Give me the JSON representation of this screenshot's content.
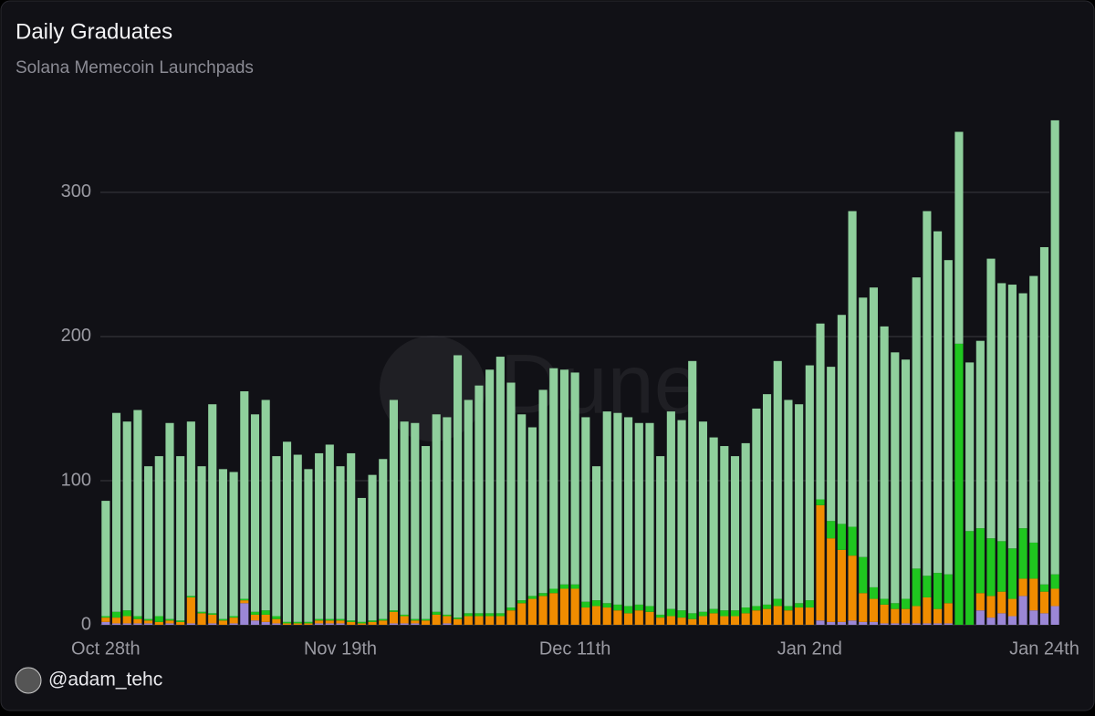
{
  "chart_data": {
    "type": "stacked_bar",
    "title": "Daily Graduates",
    "subtitle": "Solana Memecoin Launchpads",
    "watermark": "Dune",
    "author": "@adam_tehc",
    "categories": [
      "Oct 28th",
      null,
      null,
      null,
      null,
      null,
      null,
      null,
      null,
      null,
      null,
      null,
      null,
      null,
      null,
      null,
      null,
      null,
      null,
      null,
      null,
      null,
      "Nov 19th",
      null,
      null,
      null,
      null,
      null,
      null,
      null,
      null,
      null,
      null,
      null,
      null,
      null,
      null,
      null,
      null,
      null,
      null,
      null,
      null,
      null,
      "Dec 11th",
      null,
      null,
      null,
      null,
      null,
      null,
      null,
      null,
      null,
      null,
      null,
      null,
      null,
      null,
      null,
      null,
      null,
      null,
      null,
      null,
      null,
      "Jan 2nd",
      null,
      null,
      null,
      null,
      null,
      null,
      null,
      null,
      null,
      null,
      null,
      null,
      null,
      null,
      null,
      null,
      null,
      null,
      null,
      null,
      null,
      "Jan 24th",
      null
    ],
    "series": [
      {
        "color": "#9b87d6",
        "values": [
          2,
          1,
          1,
          1,
          1,
          0,
          1,
          0,
          1,
          0,
          1,
          0,
          1,
          15,
          3,
          2,
          1,
          0,
          0,
          0,
          1,
          1,
          1,
          0,
          0,
          0,
          0,
          1,
          1,
          1,
          0,
          0,
          1,
          0,
          0,
          0,
          0,
          0,
          0,
          0,
          0,
          0,
          0,
          0,
          0,
          0,
          0,
          0,
          0,
          0,
          0,
          0,
          0,
          0,
          0,
          0,
          0,
          0,
          0,
          0,
          0,
          0,
          0,
          0,
          0,
          0,
          0,
          3,
          2,
          2,
          3,
          2,
          2,
          1,
          1,
          1,
          1,
          1,
          1,
          1,
          0,
          0,
          10,
          5,
          8,
          6,
          20,
          10,
          8,
          13
        ]
      },
      {
        "color": "#f08c00",
        "values": [
          3,
          4,
          5,
          3,
          2,
          2,
          2,
          2,
          18,
          8,
          6,
          3,
          4,
          2,
          4,
          5,
          3,
          1,
          1,
          1,
          2,
          2,
          2,
          2,
          1,
          2,
          3,
          8,
          5,
          2,
          3,
          7,
          5,
          4,
          6,
          6,
          6,
          6,
          10,
          15,
          18,
          20,
          22,
          25,
          25,
          12,
          13,
          12,
          10,
          8,
          10,
          9,
          5,
          6,
          5,
          4,
          6,
          8,
          6,
          6,
          8,
          10,
          11,
          13,
          10,
          12,
          12,
          80,
          58,
          50,
          45,
          20,
          16,
          13,
          10,
          10,
          12,
          18,
          10,
          14,
          0,
          0,
          12,
          15,
          15,
          12,
          12,
          22,
          15,
          12
        ]
      },
      {
        "color": "#1fc61f",
        "values": [
          1,
          4,
          4,
          2,
          1,
          4,
          1,
          1,
          1,
          1,
          1,
          1,
          1,
          1,
          2,
          3,
          2,
          1,
          1,
          1,
          1,
          1,
          1,
          1,
          1,
          1,
          1,
          1,
          1,
          1,
          1,
          2,
          1,
          1,
          2,
          2,
          2,
          2,
          2,
          2,
          2,
          2,
          3,
          3,
          3,
          4,
          4,
          3,
          4,
          5,
          4,
          4,
          2,
          5,
          5,
          4,
          3,
          3,
          4,
          4,
          4,
          3,
          3,
          5,
          3,
          3,
          5,
          4,
          12,
          18,
          20,
          25,
          8,
          4,
          4,
          7,
          26,
          15,
          25,
          20,
          195,
          65,
          45,
          40,
          35,
          35,
          35,
          25,
          5,
          10
        ]
      },
      {
        "color": "#8fcf9c",
        "values": [
          80,
          138,
          131,
          143,
          106,
          111,
          136,
          114,
          121,
          101,
          145,
          104,
          100,
          144,
          137,
          146,
          111,
          125,
          116,
          106,
          115,
          121,
          106,
          116,
          86,
          101,
          111,
          146,
          134,
          136,
          120,
          137,
          137,
          182,
          148,
          158,
          169,
          178,
          156,
          129,
          117,
          141,
          153,
          149,
          147,
          128,
          93,
          133,
          133,
          131,
          126,
          127,
          110,
          137,
          132,
          175,
          132,
          119,
          114,
          107,
          114,
          137,
          146,
          165,
          143,
          138,
          163,
          122,
          107,
          145,
          219,
          180,
          208,
          189,
          174,
          166,
          202,
          253,
          237,
          218,
          147,
          117,
          130,
          194,
          179,
          183,
          163,
          185,
          234,
          315
        ]
      }
    ],
    "ylim": [
      0,
      355
    ],
    "yticks": [
      0,
      100,
      200,
      300
    ],
    "grid": true
  }
}
